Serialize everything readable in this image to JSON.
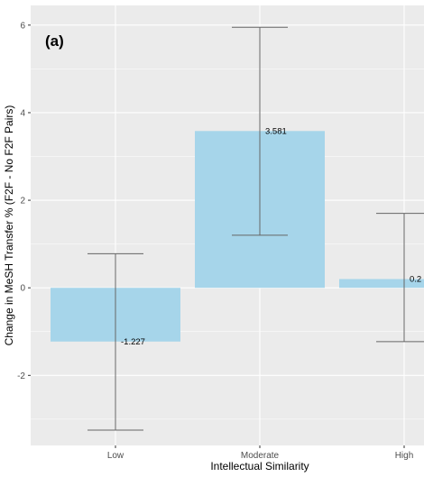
{
  "chart_data": {
    "type": "bar",
    "panel_label": "(a)",
    "xlabel": "Intellectual Similarity",
    "ylabel": "Change in MeSH Transfer % (F2F - No F2F Pairs)",
    "categories": [
      "Low",
      "Moderate",
      "High"
    ],
    "values": [
      -1.227,
      3.581,
      0.2
    ],
    "value_labels": [
      "-1.227",
      "3.581",
      "0.2"
    ],
    "error_low": [
      -3.25,
      1.2,
      -1.23
    ],
    "error_high": [
      0.78,
      5.95,
      1.7
    ],
    "y_ticks": [
      -2,
      0,
      2,
      4,
      6
    ],
    "y_tick_labels": [
      "-2",
      "0",
      "2",
      "4",
      "6"
    ],
    "ylim": [
      -3.6,
      6.45
    ],
    "grid": true,
    "colors": {
      "bar": "#a6d5ea",
      "panel_background": "#ebebeb",
      "grid_major": "#ffffff",
      "error_bar": "#666666"
    }
  }
}
